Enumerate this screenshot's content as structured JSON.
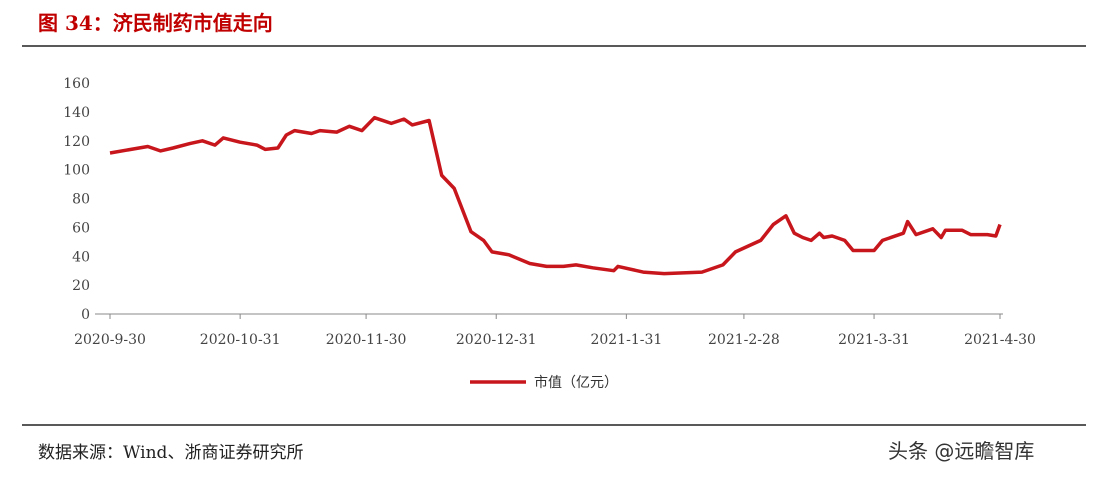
{
  "chart_data": {
    "type": "line",
    "title": "图 34：济民制药市值走向",
    "source": "数据来源：Wind、浙商证券研究所",
    "watermark": "头条 @远瞻智库",
    "x": [
      "2020-9-30",
      "2020-10-9",
      "2020-10-12",
      "2020-10-15",
      "2020-10-19",
      "2020-10-22",
      "2020-10-25",
      "2020-10-27",
      "2020-10-31",
      "2020-11-4",
      "2020-11-6",
      "2020-11-9",
      "2020-11-11",
      "2020-11-13",
      "2020-11-17",
      "2020-11-19",
      "2020-11-23",
      "2020-11-26",
      "2020-11-29",
      "2020-12-2",
      "2020-12-6",
      "2020-12-9",
      "2020-12-11",
      "2020-12-15",
      "2020-12-18",
      "2020-12-21",
      "2020-12-25",
      "2020-12-28",
      "2020-12-30",
      "2021-1-3",
      "2021-1-8",
      "2021-1-12",
      "2021-1-16",
      "2021-1-19",
      "2021-1-23",
      "2021-1-28",
      "2021-1-29",
      "2021-2-4",
      "2021-2-9",
      "2021-2-18",
      "2021-2-23",
      "2021-2-26",
      "2021-3-4",
      "2021-3-7",
      "2021-3-10",
      "2021-3-12",
      "2021-3-14",
      "2021-3-16",
      "2021-3-18",
      "2021-3-19",
      "2021-3-21",
      "2021-3-24",
      "2021-3-26",
      "2021-3-31",
      "2021-4-2",
      "2021-4-7",
      "2021-4-8",
      "2021-4-10",
      "2021-4-14",
      "2021-4-16",
      "2021-4-17",
      "2021-4-21",
      "2021-4-23",
      "2021-4-27",
      "2021-4-29",
      "2021-4-30"
    ],
    "series": [
      {
        "name": "市值（亿元）",
        "color": "#c8161d",
        "values": [
          111.5,
          116,
          113,
          115,
          118,
          120,
          117,
          122,
          119,
          117,
          114,
          115,
          124,
          127,
          125,
          127,
          126,
          130,
          127,
          136,
          132,
          135,
          131,
          134,
          96,
          87,
          57,
          51,
          43,
          41,
          35,
          33,
          33,
          34,
          32,
          30,
          33,
          29,
          28,
          29,
          34,
          43,
          51,
          62,
          68,
          56,
          53,
          51,
          56,
          53,
          54,
          51,
          44,
          44,
          51,
          56,
          64,
          55,
          59,
          53,
          58,
          58,
          55,
          55,
          54,
          62
        ]
      }
    ],
    "xlim": [
      "2020-9-30",
      "2021-4-30"
    ],
    "xticks": [
      "2020-9-30",
      "2020-10-31",
      "2020-11-30",
      "2020-12-31",
      "2021-1-31",
      "2021-2-28",
      "2021-3-31",
      "2021-4-30"
    ],
    "ylim": [
      0,
      160
    ],
    "yticks": [
      0,
      20,
      40,
      60,
      80,
      100,
      120,
      140,
      160
    ],
    "legend": "bottom"
  }
}
